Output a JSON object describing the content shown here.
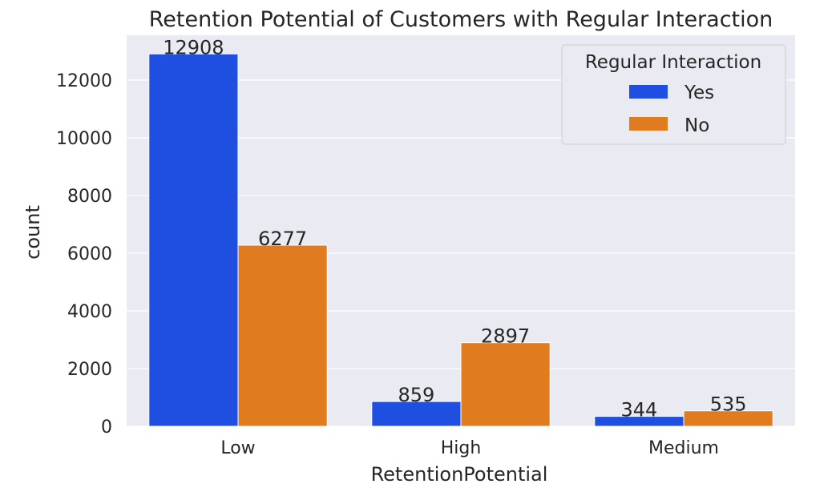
{
  "chart_data": {
    "type": "bar",
    "title": "Retention Potential of Customers with Regular Interaction",
    "xlabel": "RetentionPotential",
    "ylabel": "count",
    "categories": [
      "Low",
      "High",
      "Medium"
    ],
    "series": [
      {
        "name": "Yes",
        "values": [
          12908,
          859,
          344
        ],
        "color": "#1f4fe0"
      },
      {
        "name": "No",
        "values": [
          6277,
          2897,
          535
        ],
        "color": "#e07b20"
      }
    ],
    "data_labels": [
      [
        "12908",
        "859",
        "344"
      ],
      [
        "6277",
        "2897",
        "535"
      ]
    ],
    "ylim": [
      0,
      13554
    ],
    "yticks": [
      0,
      2000,
      4000,
      6000,
      8000,
      10000,
      12000
    ],
    "ytick_labels": [
      "0",
      "2000",
      "4000",
      "6000",
      "8000",
      "10000",
      "12000"
    ],
    "grid": true,
    "background": "#eaeaf2",
    "legend": {
      "title": "Regular Interaction",
      "placement": "top-right"
    }
  }
}
